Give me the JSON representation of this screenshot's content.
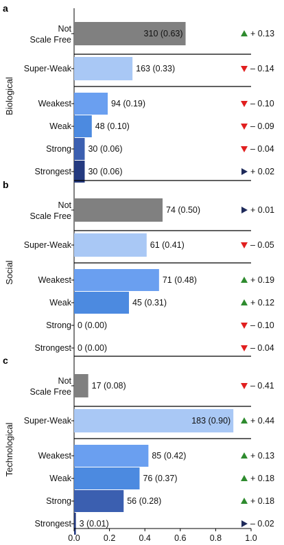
{
  "chart_data": {
    "type": "bar",
    "orientation": "horizontal",
    "xlim": [
      0,
      1.0
    ],
    "xticks": [
      "0.0",
      "0.2",
      "0.4",
      "0.6",
      "0.8",
      "1.0"
    ],
    "categories": [
      "Not Scale Free",
      "Super-Weak",
      "Weakest",
      "Weak",
      "Strong",
      "Strongest"
    ],
    "category_lines": [
      [
        "Not",
        "Scale Free"
      ],
      [
        "Super-Weak"
      ],
      [
        "Weakest"
      ],
      [
        "Weak"
      ],
      [
        "Strong"
      ],
      [
        "Strongest"
      ]
    ],
    "colors": {
      "Not Scale Free": "#808080",
      "Super-Weak": "#a9c8f5",
      "Weakest": "#6a9ff0",
      "Weak": "#4c8ae0",
      "Strong": "#3b5fb0",
      "Strongest": "#243a80",
      "up": "#2e8b2e",
      "down": "#e11f1f",
      "right": "#1e2a5a"
    },
    "panels": [
      {
        "letter": "a",
        "group": "Biological",
        "values": [
          0.63,
          0.33,
          0.19,
          0.1,
          0.06,
          0.06
        ],
        "labels": [
          "310 (0.63)",
          "163 (0.33)",
          "94 (0.19)",
          "48 (0.10)",
          "30 (0.06)",
          "30 (0.06)"
        ],
        "changes": [
          "+ 0.13",
          "– 0.14",
          "– 0.10",
          "– 0.09",
          "– 0.04",
          "+ 0.02"
        ],
        "change_icons": [
          "up",
          "down",
          "down",
          "down",
          "down",
          "right"
        ]
      },
      {
        "letter": "b",
        "group": "Social",
        "values": [
          0.5,
          0.41,
          0.48,
          0.31,
          0.0,
          0.0
        ],
        "labels": [
          "74 (0.50)",
          "61 (0.41)",
          "71 (0.48)",
          "45 (0.31)",
          "0 (0.00)",
          "0 (0.00)"
        ],
        "changes": [
          "+ 0.01",
          "– 0.05",
          "+ 0.19",
          "+ 0.12",
          "– 0.10",
          "– 0.04"
        ],
        "change_icons": [
          "right",
          "down",
          "up",
          "up",
          "down",
          "down"
        ]
      },
      {
        "letter": "c",
        "group": "Technological",
        "values": [
          0.08,
          0.9,
          0.42,
          0.37,
          0.28,
          0.01
        ],
        "labels": [
          "17 (0.08)",
          "183 (0.90)",
          "85 (0.42)",
          "76 (0.37)",
          "56 (0.28)",
          "3 (0.01)"
        ],
        "changes": [
          "– 0.41",
          "+ 0.44",
          "+ 0.13",
          "+ 0.18",
          "+ 0.18",
          "– 0.02"
        ],
        "change_icons": [
          "down",
          "up",
          "up",
          "up",
          "up",
          "right"
        ]
      }
    ]
  }
}
